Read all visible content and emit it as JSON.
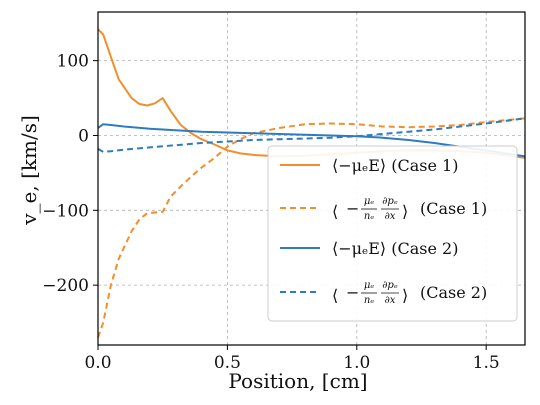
{
  "chart_data": {
    "type": "line",
    "xlabel": "Position, [cm]",
    "ylabel": "v_e, [km/s]",
    "xlim": [
      0.0,
      1.65
    ],
    "ylim": [
      -280,
      165
    ],
    "xticks": [
      0.0,
      0.5,
      1.0,
      1.5
    ],
    "xtick_labels": [
      "0.0",
      "0.5",
      "1.0",
      "1.5"
    ],
    "yticks": [
      100,
      0,
      -100,
      -200
    ],
    "ytick_labels": [
      "100",
      "0",
      "−100",
      "−200"
    ],
    "grid": true,
    "legend_position": "lower-right",
    "colors": {
      "case1": "#f28e2b",
      "case2": "#2f7bbf"
    },
    "series": [
      {
        "name": "⟨−μₑE⟩ (Case 1)",
        "legend_main": "⟨−μₑE⟩",
        "legend_suffix": "(Case 1)",
        "style": "solid",
        "color_key": "case1",
        "x": [
          0.0,
          0.02,
          0.05,
          0.08,
          0.1,
          0.13,
          0.16,
          0.19,
          0.22,
          0.25,
          0.28,
          0.32,
          0.36,
          0.4,
          0.45,
          0.5,
          0.55,
          0.6,
          0.7,
          0.8,
          0.9,
          1.0,
          1.1,
          1.2,
          1.3,
          1.4,
          1.5,
          1.65
        ],
        "y": [
          142,
          135,
          105,
          75,
          65,
          50,
          42,
          40,
          43,
          50,
          33,
          14,
          3,
          -5,
          -12,
          -20,
          -24,
          -26,
          -28,
          -27,
          -25,
          -23,
          -21,
          -20,
          -20,
          -21,
          -23,
          -30
        ]
      },
      {
        "name": "⟨−(μₑ/nₑ)∂pₑ/∂x⟩ (Case 1)",
        "legend_main": "",
        "legend_suffix": "(Case 1)",
        "style": "dashed",
        "color_key": "case1",
        "x": [
          0.0,
          0.02,
          0.05,
          0.08,
          0.1,
          0.13,
          0.16,
          0.19,
          0.22,
          0.25,
          0.28,
          0.32,
          0.36,
          0.4,
          0.45,
          0.5,
          0.55,
          0.6,
          0.7,
          0.8,
          0.9,
          1.0,
          1.1,
          1.2,
          1.3,
          1.4,
          1.5,
          1.65
        ],
        "y": [
          -270,
          -250,
          -200,
          -165,
          -150,
          -128,
          -112,
          -104,
          -103,
          -102,
          -82,
          -68,
          -55,
          -43,
          -30,
          -15,
          -5,
          3,
          10,
          15,
          16,
          15,
          12,
          11,
          12,
          14,
          18,
          23
        ]
      },
      {
        "name": "⟨−μₑE⟩ (Case 2)",
        "legend_main": "⟨−μₑE⟩",
        "legend_suffix": "(Case 2)",
        "style": "solid",
        "color_key": "case2",
        "x": [
          0.0,
          0.02,
          0.05,
          0.1,
          0.2,
          0.3,
          0.4,
          0.5,
          0.6,
          0.7,
          0.8,
          0.9,
          1.0,
          1.1,
          1.2,
          1.3,
          1.4,
          1.5,
          1.65
        ],
        "y": [
          10,
          15,
          14,
          12,
          9,
          7,
          5,
          4,
          3,
          2,
          1,
          0,
          -1,
          -3,
          -6,
          -10,
          -15,
          -20,
          -28
        ]
      },
      {
        "name": "⟨−(μₑ/nₑ)∂pₑ/∂x⟩ (Case 2)",
        "legend_main": "",
        "legend_suffix": "(Case 2)",
        "style": "dashed",
        "color_key": "case2",
        "x": [
          0.0,
          0.02,
          0.05,
          0.1,
          0.2,
          0.3,
          0.4,
          0.5,
          0.6,
          0.7,
          0.8,
          0.9,
          1.0,
          1.1,
          1.2,
          1.3,
          1.4,
          1.5,
          1.65
        ],
        "y": [
          -18,
          -22,
          -21,
          -19,
          -16,
          -13,
          -10,
          -8,
          -6,
          -5,
          -4,
          -3,
          -1,
          2,
          5,
          8,
          12,
          16,
          23
        ]
      }
    ]
  }
}
